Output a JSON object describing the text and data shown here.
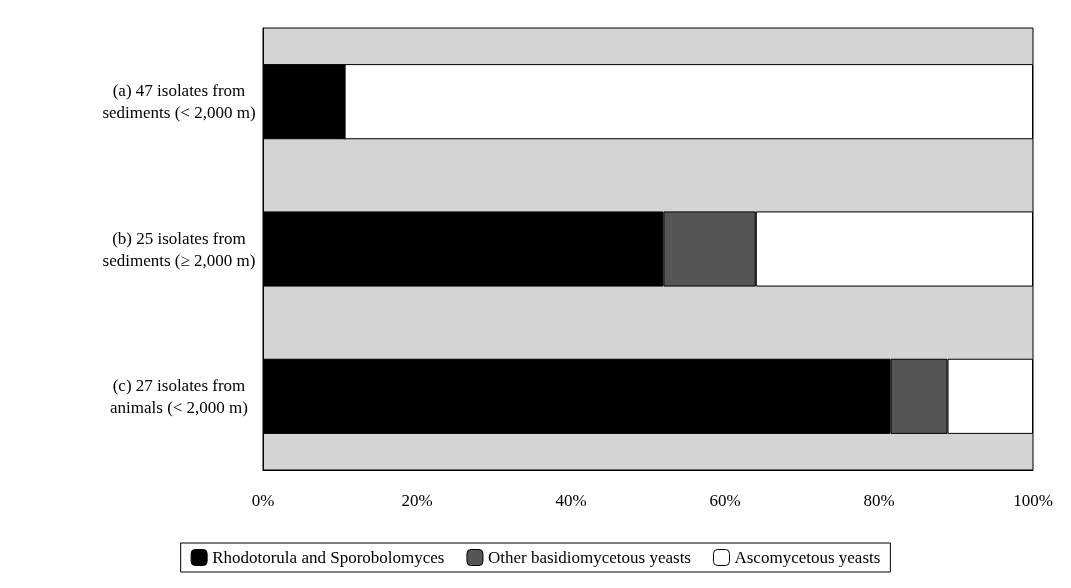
{
  "chart_data": {
    "type": "bar",
    "orientation": "horizontal",
    "stacked": true,
    "categories": [
      "(a) 47 isolates from\nsediments (< 2,000 m)",
      "(b) 25 isolates from\nsediments (≥ 2,000 m)",
      "(c) 27 isolates from\nanimals (< 2,000 m)"
    ],
    "series": [
      {
        "name": "Rhodotorula and Sporobolomyces",
        "color": "#000000",
        "values": [
          10.6,
          52,
          81.5
        ]
      },
      {
        "name": "Other basidiomycetous yeasts",
        "color": "#555555",
        "values": [
          0,
          12,
          7.4
        ]
      },
      {
        "name": "Ascomycetous yeasts",
        "color": "#ffffff",
        "values": [
          89.4,
          36,
          11.1
        ]
      }
    ],
    "xlim": [
      0,
      100
    ],
    "xticks": [
      {
        "value": 0,
        "label": "0%"
      },
      {
        "value": 20,
        "label": "20%"
      },
      {
        "value": 40,
        "label": "40%"
      },
      {
        "value": 60,
        "label": "60%"
      },
      {
        "value": 80,
        "label": "80%"
      },
      {
        "value": 100,
        "label": "100%"
      }
    ],
    "grid": false,
    "legend": "bottom"
  }
}
